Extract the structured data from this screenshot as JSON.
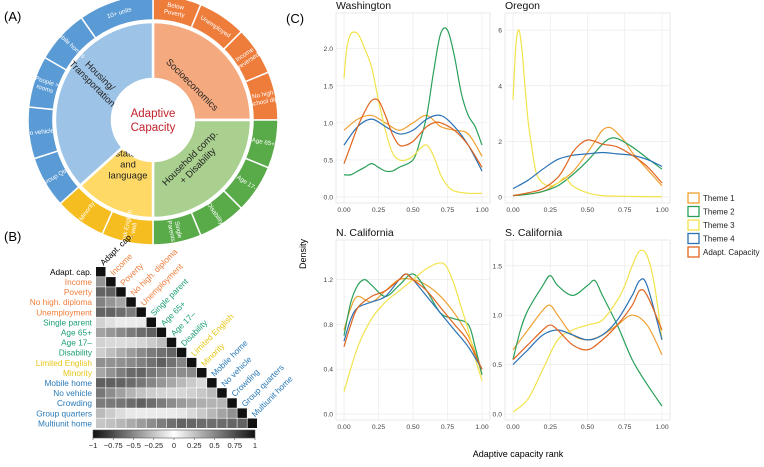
{
  "panel_labels": {
    "a": "(A)",
    "b": "(B)",
    "c": "(C)"
  },
  "sunburst": {
    "center": [
      "Adaptive",
      "Capacity"
    ],
    "themes": [
      {
        "name": "Socioeconomics",
        "lines": [
          "Socioeconomics"
        ],
        "color": "#f4a97f",
        "outer": "#ee7d3b"
      },
      {
        "name": "Household comp. + Disability",
        "lines": [
          "Household comp.",
          "+ Disability"
        ],
        "color": "#a9d08e",
        "outer": "#59ab4a"
      },
      {
        "name": "Minority status and language",
        "lines": [
          "Minority",
          "status",
          "and",
          "language"
        ],
        "color": "#ffd966",
        "outer": "#f5bd1f"
      },
      {
        "name": "Housing/Transportation",
        "lines": [
          "Housing/",
          "Transportation"
        ],
        "color": "#9dc3e6",
        "outer": "#5b9bd5"
      }
    ],
    "variables": [
      {
        "theme": 0,
        "lines": [
          "Below",
          "Poverty"
        ]
      },
      {
        "theme": 0,
        "lines": [
          "Unemployed"
        ]
      },
      {
        "theme": 0,
        "lines": [
          "Income",
          "(reversed)"
        ]
      },
      {
        "theme": 0,
        "lines": [
          "No high",
          "school dip"
        ]
      },
      {
        "theme": 1,
        "lines": [
          "Age 65+"
        ]
      },
      {
        "theme": 1,
        "lines": [
          "Age 17-"
        ]
      },
      {
        "theme": 1,
        "lines": [
          "Disability"
        ]
      },
      {
        "theme": 1,
        "lines": [
          "Single",
          "Parents"
        ]
      },
      {
        "theme": 2,
        "lines": [
          "Speak English",
          "< well"
        ]
      },
      {
        "theme": 2,
        "lines": [
          "Minority"
        ]
      },
      {
        "theme": 3,
        "lines": [
          "Group Qtrs"
        ]
      },
      {
        "theme": 3,
        "lines": [
          "No vehicles"
        ]
      },
      {
        "theme": 3,
        "lines": [
          "People >",
          "rooms"
        ]
      },
      {
        "theme": 3,
        "lines": [
          "Mobile homes"
        ]
      },
      {
        "theme": 3,
        "lines": [
          "10+ units"
        ]
      }
    ]
  },
  "correlation": {
    "labels": [
      "Adapt. cap.",
      "Income",
      "Poverty",
      "No high. diploma",
      "Unemployment",
      "Single parent",
      "Age 65+",
      "Age 17–",
      "Disability",
      "Limited English",
      "Minority",
      "Mobile home",
      "No vehicle",
      "Crowding",
      "Group quarters",
      "Multiunit home"
    ],
    "label_colors": [
      "#000000",
      "#ee7d3b",
      "#ee7d3b",
      "#ee7d3b",
      "#ee7d3b",
      "#1b9e77",
      "#1b9e77",
      "#1b9e77",
      "#1b9e77",
      "#e6c619",
      "#e6c619",
      "#2a7ab8",
      "#2a7ab8",
      "#2a7ab8",
      "#2a7ab8",
      "#2a7ab8"
    ],
    "colorbar_ticks": [
      "−1",
      "−0.75",
      "−0.5",
      "−0.25",
      "0",
      "0.25",
      "0.5",
      "0.75",
      "1"
    ]
  },
  "theme_colors": {
    "Theme 1": "#f0a030",
    "Theme 2": "#2aa05a",
    "Theme 3": "#f2e34b",
    "Theme 4": "#2a72b5",
    "Adapt. Capacity": "#e0651f"
  },
  "chart_data": {
    "type": "line",
    "xlabel": "Adaptive capacity rank",
    "ylabel": "Density",
    "legend": {
      "placement": "right",
      "entries": [
        "Theme 1",
        "Theme 2",
        "Theme 3",
        "Theme 4",
        "Adapt. Capacity"
      ]
    },
    "grid": true,
    "panels": [
      {
        "title": "Washington",
        "xlim": [
          0,
          1
        ],
        "ylim": [
          0,
          2.4
        ],
        "x_ticks": [
          "0.00",
          "0.25",
          "0.50",
          "0.75",
          "1.00"
        ],
        "y_ticks": [
          "0.0",
          "0.5",
          "1.0",
          "1.5",
          "2.0"
        ],
        "series": [
          {
            "name": "Theme 1",
            "x": [
              0,
              0.1,
              0.2,
              0.3,
              0.4,
              0.5,
              0.6,
              0.7,
              0.8,
              0.9,
              1.0
            ],
            "y": [
              0.9,
              1.05,
              1.1,
              1.0,
              0.9,
              1.0,
              1.1,
              0.95,
              0.9,
              0.85,
              0.55
            ]
          },
          {
            "name": "Theme 2",
            "x": [
              0,
              0.05,
              0.1,
              0.15,
              0.2,
              0.25,
              0.3,
              0.35,
              0.4,
              0.5,
              0.55,
              0.6,
              0.65,
              0.7,
              0.75,
              0.8,
              0.85,
              0.9,
              0.95,
              1.0
            ],
            "y": [
              0.3,
              0.3,
              0.35,
              0.4,
              0.45,
              0.4,
              0.35,
              0.35,
              0.4,
              0.5,
              0.75,
              1.1,
              1.7,
              2.2,
              2.25,
              1.9,
              1.4,
              1.1,
              0.95,
              0.7
            ]
          },
          {
            "name": "Theme 3",
            "x": [
              0,
              0.02,
              0.05,
              0.1,
              0.15,
              0.2,
              0.25,
              0.3,
              0.35,
              0.4,
              0.45,
              0.5,
              0.55,
              0.6,
              0.65,
              0.7,
              0.75,
              0.8,
              0.9,
              1.0
            ],
            "y": [
              1.6,
              2.0,
              2.2,
              2.2,
              2.0,
              1.75,
              1.3,
              0.9,
              0.6,
              0.5,
              0.5,
              0.55,
              0.65,
              0.7,
              0.55,
              0.3,
              0.15,
              0.08,
              0.05,
              0.05
            ]
          },
          {
            "name": "Theme 4",
            "x": [
              0,
              0.1,
              0.2,
              0.3,
              0.4,
              0.5,
              0.6,
              0.7,
              0.8,
              0.9,
              1.0
            ],
            "y": [
              0.7,
              0.95,
              1.05,
              0.95,
              0.85,
              0.9,
              1.05,
              1.1,
              0.95,
              0.7,
              0.35
            ]
          },
          {
            "name": "Adapt. Capacity",
            "x": [
              0,
              0.05,
              0.1,
              0.15,
              0.2,
              0.25,
              0.3,
              0.35,
              0.4,
              0.45,
              0.5,
              0.55,
              0.6,
              0.65,
              0.7,
              0.8,
              0.9,
              1.0
            ],
            "y": [
              0.45,
              0.7,
              0.95,
              1.15,
              1.3,
              1.3,
              1.1,
              0.85,
              0.7,
              0.7,
              0.75,
              0.85,
              0.95,
              1.0,
              1.0,
              0.9,
              0.7,
              0.4
            ]
          }
        ]
      },
      {
        "title": "Oregon",
        "xlim": [
          0,
          1
        ],
        "ylim": [
          0,
          6.4
        ],
        "x_ticks": [
          "0.00",
          "0.25",
          "0.50",
          "0.75",
          "1.00"
        ],
        "y_ticks": [
          "0",
          "2",
          "4",
          "6"
        ],
        "series": [
          {
            "name": "Theme 1",
            "x": [
              0,
              0.1,
              0.2,
              0.3,
              0.4,
              0.5,
              0.55,
              0.6,
              0.65,
              0.7,
              0.75,
              0.8,
              0.9,
              1.0
            ],
            "y": [
              0.05,
              0.1,
              0.2,
              0.5,
              0.9,
              1.6,
              2.0,
              2.4,
              2.5,
              2.3,
              2.0,
              1.6,
              1.0,
              0.4
            ]
          },
          {
            "name": "Theme 2",
            "x": [
              0,
              0.1,
              0.2,
              0.3,
              0.4,
              0.5,
              0.6,
              0.65,
              0.7,
              0.8,
              0.9,
              1.0
            ],
            "y": [
              0.05,
              0.1,
              0.2,
              0.4,
              0.8,
              1.3,
              1.9,
              2.1,
              2.1,
              1.8,
              1.4,
              1.0
            ]
          },
          {
            "name": "Theme 3",
            "x": [
              0,
              0.02,
              0.04,
              0.06,
              0.08,
              0.1,
              0.12,
              0.14,
              0.16,
              0.2,
              0.25,
              0.3,
              0.35,
              0.4,
              0.5,
              0.6,
              0.8,
              1.0
            ],
            "y": [
              3.5,
              5.5,
              6.0,
              5.3,
              4.0,
              2.8,
              2.0,
              1.3,
              0.8,
              0.5,
              0.4,
              0.5,
              0.7,
              0.4,
              0.15,
              0.05,
              0.02,
              0.01
            ]
          },
          {
            "name": "Theme 4",
            "x": [
              0,
              0.1,
              0.2,
              0.3,
              0.4,
              0.5,
              0.6,
              0.7,
              0.8,
              0.9,
              1.0
            ],
            "y": [
              0.3,
              0.6,
              1.0,
              1.35,
              1.5,
              1.55,
              1.6,
              1.55,
              1.5,
              1.35,
              1.1
            ]
          },
          {
            "name": "Adapt. Capacity",
            "x": [
              0,
              0.1,
              0.2,
              0.3,
              0.35,
              0.4,
              0.45,
              0.5,
              0.55,
              0.6,
              0.7,
              0.8,
              0.9,
              1.0
            ],
            "y": [
              0.05,
              0.15,
              0.3,
              0.7,
              1.1,
              1.6,
              1.9,
              2.05,
              2.0,
              1.9,
              1.8,
              1.5,
              1.1,
              0.5
            ]
          }
        ]
      },
      {
        "title": "N. California",
        "xlim": [
          0,
          1
        ],
        "ylim": [
          0,
          1.5
        ],
        "x_ticks": [
          "0.00",
          "0.25",
          "0.50",
          "0.75",
          "1.00"
        ],
        "y_ticks": [
          "0.0",
          "0.4",
          "0.8",
          "1.2"
        ],
        "series": [
          {
            "name": "Theme 1",
            "x": [
              0,
              0.05,
              0.1,
              0.2,
              0.3,
              0.4,
              0.5,
              0.6,
              0.7,
              0.8,
              0.9,
              0.95,
              1.0
            ],
            "y": [
              0.75,
              0.95,
              1.05,
              1.0,
              1.1,
              1.2,
              1.2,
              1.15,
              1.05,
              0.9,
              0.7,
              0.55,
              0.35
            ]
          },
          {
            "name": "Theme 2",
            "x": [
              0,
              0.05,
              0.1,
              0.15,
              0.2,
              0.3,
              0.4,
              0.5,
              0.6,
              0.7,
              0.8,
              0.9,
              0.95,
              1.0
            ],
            "y": [
              0.7,
              1.0,
              1.15,
              1.2,
              1.15,
              1.05,
              1.15,
              1.25,
              1.1,
              0.9,
              0.85,
              0.8,
              0.6,
              0.35
            ]
          },
          {
            "name": "Theme 3",
            "x": [
              0,
              0.1,
              0.2,
              0.3,
              0.4,
              0.5,
              0.6,
              0.7,
              0.75,
              0.8,
              0.85,
              0.9,
              0.95,
              1.0
            ],
            "y": [
              0.2,
              0.6,
              0.85,
              1.0,
              1.1,
              1.2,
              1.3,
              1.35,
              1.3,
              1.15,
              0.95,
              0.75,
              0.5,
              0.3
            ]
          },
          {
            "name": "Theme 4",
            "x": [
              0,
              0.05,
              0.1,
              0.2,
              0.3,
              0.4,
              0.45,
              0.5,
              0.6,
              0.7,
              0.8,
              0.9,
              1.0
            ],
            "y": [
              0.65,
              0.85,
              0.95,
              1.0,
              1.05,
              1.2,
              1.25,
              1.2,
              1.05,
              0.9,
              0.75,
              0.6,
              0.4
            ]
          },
          {
            "name": "Adapt. Capacity",
            "x": [
              0,
              0.05,
              0.1,
              0.2,
              0.3,
              0.4,
              0.45,
              0.5,
              0.6,
              0.7,
              0.8,
              0.9,
              1.0
            ],
            "y": [
              0.6,
              0.8,
              0.95,
              1.05,
              1.1,
              1.2,
              1.25,
              1.2,
              1.1,
              0.95,
              0.8,
              0.65,
              0.4
            ]
          }
        ]
      },
      {
        "title": "S. California",
        "xlim": [
          0,
          1
        ],
        "ylim": [
          0,
          1.7
        ],
        "x_ticks": [
          "0.00",
          "0.25",
          "0.50",
          "0.75",
          "1.00"
        ],
        "y_ticks": [
          "0.0",
          "0.5",
          "1.0",
          "1.5"
        ],
        "series": [
          {
            "name": "Theme 1",
            "x": [
              0,
              0.1,
              0.2,
              0.25,
              0.3,
              0.4,
              0.5,
              0.6,
              0.7,
              0.8,
              0.9,
              1.0
            ],
            "y": [
              0.65,
              0.85,
              1.05,
              1.1,
              1.0,
              0.8,
              0.75,
              0.8,
              0.9,
              1.0,
              0.9,
              0.6
            ]
          },
          {
            "name": "Theme 2",
            "x": [
              0,
              0.05,
              0.1,
              0.2,
              0.25,
              0.3,
              0.4,
              0.5,
              0.55,
              0.6,
              0.7,
              0.8,
              0.9,
              1.0
            ],
            "y": [
              0.55,
              0.85,
              1.05,
              1.3,
              1.4,
              1.3,
              1.2,
              1.3,
              1.35,
              1.2,
              0.9,
              0.55,
              0.3,
              0.08
            ]
          },
          {
            "name": "Theme 3",
            "x": [
              0,
              0.1,
              0.2,
              0.3,
              0.4,
              0.5,
              0.6,
              0.7,
              0.75,
              0.8,
              0.85,
              0.9,
              0.95,
              1.0
            ],
            "y": [
              0.02,
              0.15,
              0.45,
              0.75,
              0.85,
              0.9,
              0.95,
              1.15,
              1.3,
              1.5,
              1.65,
              1.6,
              1.3,
              0.75
            ]
          },
          {
            "name": "Theme 4",
            "x": [
              0,
              0.1,
              0.2,
              0.3,
              0.4,
              0.5,
              0.6,
              0.7,
              0.8,
              0.85,
              0.9,
              1.0
            ],
            "y": [
              0.5,
              0.65,
              0.8,
              0.85,
              0.8,
              0.75,
              0.8,
              0.95,
              1.2,
              1.35,
              1.3,
              0.75
            ]
          },
          {
            "name": "Adapt. Capacity",
            "x": [
              0,
              0.1,
              0.2,
              0.25,
              0.3,
              0.4,
              0.5,
              0.6,
              0.7,
              0.8,
              0.85,
              0.9,
              1.0
            ],
            "y": [
              0.55,
              0.7,
              0.85,
              0.9,
              0.85,
              0.7,
              0.65,
              0.75,
              0.9,
              1.1,
              1.25,
              1.2,
              0.85
            ]
          }
        ]
      }
    ]
  }
}
